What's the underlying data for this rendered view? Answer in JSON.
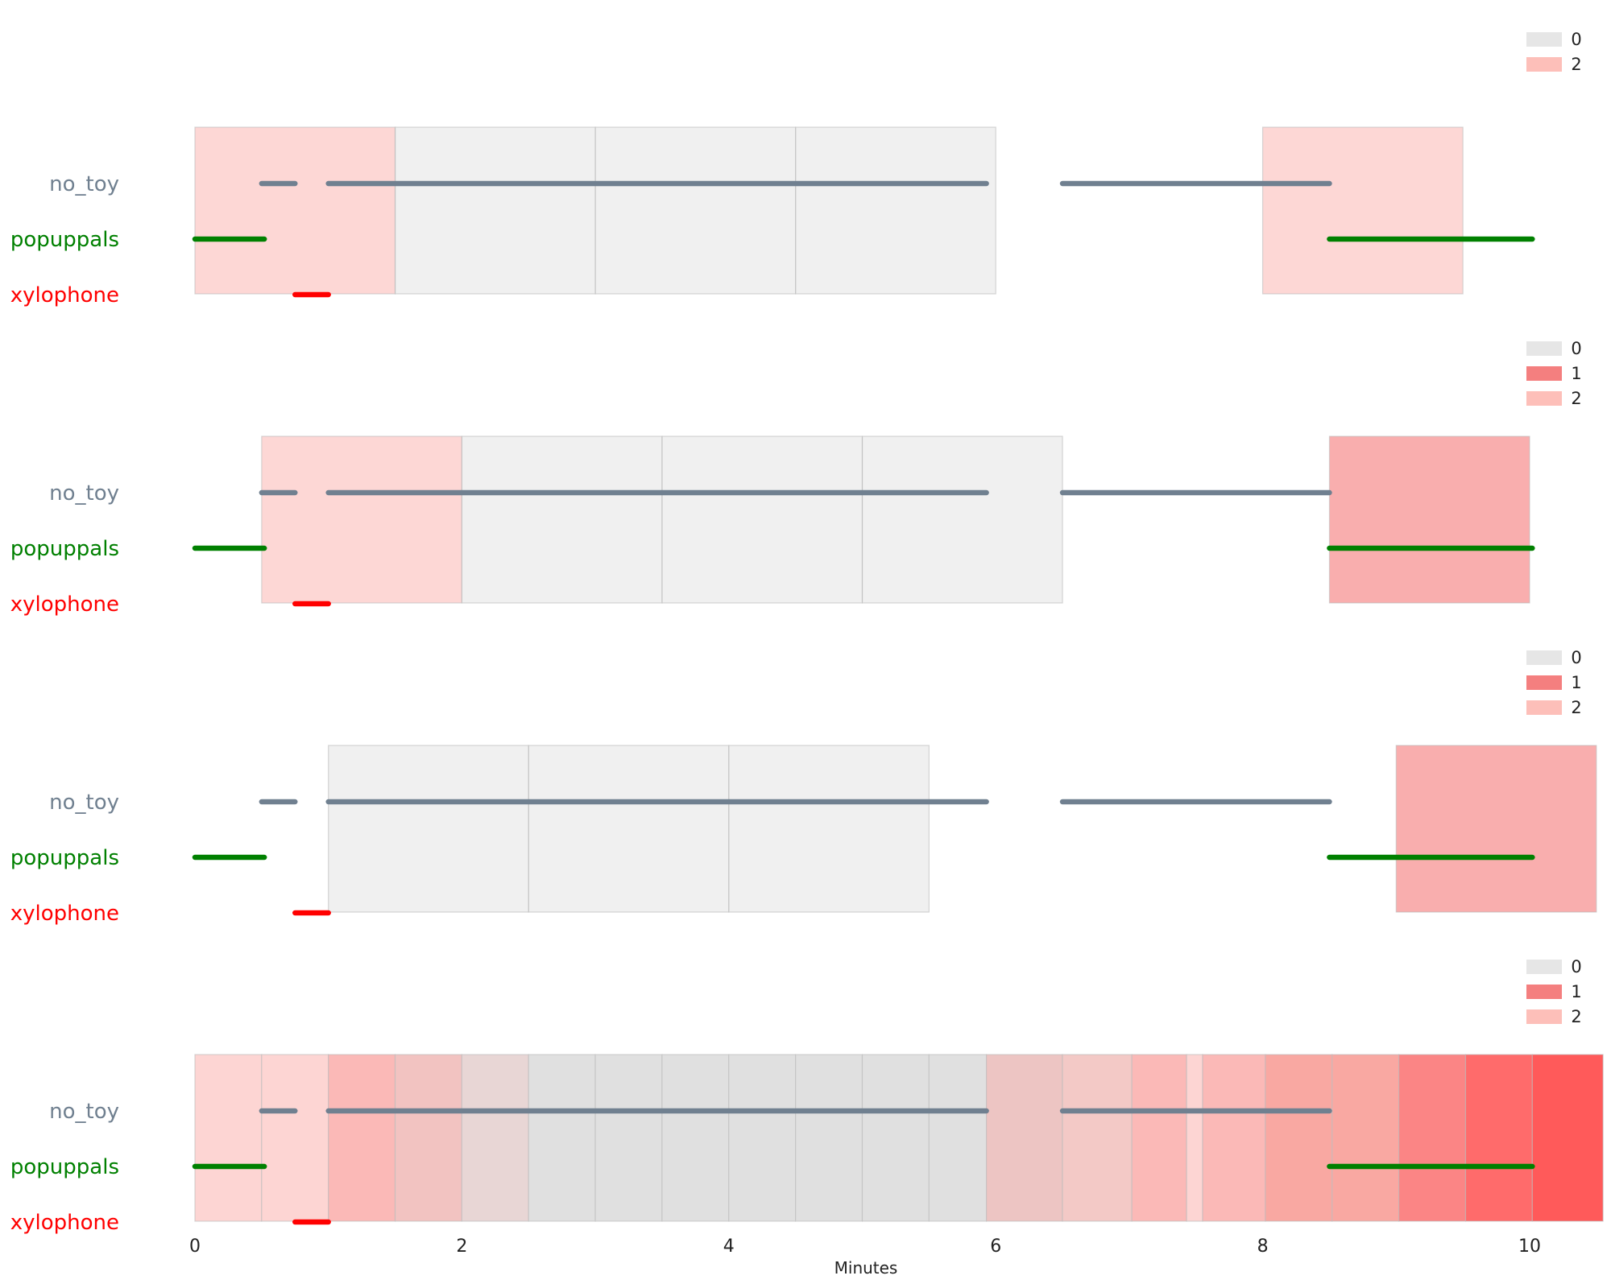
{
  "colors": {
    "no_toy": "#708090",
    "popuppals": "#008000",
    "xylophone": "#ff0000",
    "legend_0": "#e6e6e6",
    "legend_1": "#f47f7f",
    "legend_2": "#fdbfb9"
  },
  "chart_data": [
    {
      "type": "timeline",
      "rows": [
        "no_toy",
        "popuppals",
        "xylophone"
      ],
      "legend": [
        {
          "label": "0"
        },
        {
          "label": "2"
        }
      ],
      "windows": [
        {
          "start": 0.0,
          "end": 1.5,
          "level": "2"
        },
        {
          "start": 1.5,
          "end": 3.0,
          "level": "0"
        },
        {
          "start": 3.0,
          "end": 4.5,
          "level": "0"
        },
        {
          "start": 4.5,
          "end": 6.0,
          "level": "0"
        },
        {
          "start": 8.0,
          "end": 9.5,
          "level": "2"
        }
      ]
    },
    {
      "type": "timeline",
      "rows": [
        "no_toy",
        "popuppals",
        "xylophone"
      ],
      "legend": [
        {
          "label": "0"
        },
        {
          "label": "1"
        },
        {
          "label": "2"
        }
      ],
      "windows": [
        {
          "start": 0.5,
          "end": 2.0,
          "level": "2"
        },
        {
          "start": 2.0,
          "end": 3.5,
          "level": "0"
        },
        {
          "start": 3.5,
          "end": 5.0,
          "level": "0"
        },
        {
          "start": 5.0,
          "end": 6.5,
          "level": "0"
        },
        {
          "start": 8.5,
          "end": 10.0,
          "level": "1"
        }
      ]
    },
    {
      "type": "timeline",
      "rows": [
        "no_toy",
        "popuppals",
        "xylophone"
      ],
      "legend": [
        {
          "label": "0"
        },
        {
          "label": "1"
        },
        {
          "label": "2"
        }
      ],
      "windows": [
        {
          "start": 1.0,
          "end": 2.5,
          "level": "0"
        },
        {
          "start": 2.5,
          "end": 4.0,
          "level": "0"
        },
        {
          "start": 4.0,
          "end": 5.5,
          "level": "0"
        },
        {
          "start": 9.0,
          "end": 10.5,
          "level": "1"
        }
      ]
    },
    {
      "type": "timeline",
      "rows": [
        "no_toy",
        "popuppals",
        "xylophone"
      ],
      "legend": [
        {
          "label": "0"
        },
        {
          "label": "1"
        },
        {
          "label": "2"
        }
      ],
      "xlabel": "Minutes",
      "xlim": [
        0,
        10.55
      ],
      "xticks": [
        0,
        2,
        4,
        6,
        8,
        10
      ],
      "heat_segments": [
        {
          "start": 0.0,
          "end": 0.5,
          "color": "#fdd5d3"
        },
        {
          "start": 0.5,
          "end": 1.0,
          "color": "#fdd5d3"
        },
        {
          "start": 1.0,
          "end": 1.5,
          "color": "#fbb9b7"
        },
        {
          "start": 1.5,
          "end": 2.0,
          "color": "#f2c3c1"
        },
        {
          "start": 2.0,
          "end": 2.5,
          "color": "#e8d6d5"
        },
        {
          "start": 2.5,
          "end": 3.0,
          "color": "#e0e0e0"
        },
        {
          "start": 3.0,
          "end": 3.5,
          "color": "#e0e0e0"
        },
        {
          "start": 3.5,
          "end": 4.0,
          "color": "#e0e0e0"
        },
        {
          "start": 4.0,
          "end": 4.5,
          "color": "#e0e0e0"
        },
        {
          "start": 4.5,
          "end": 5.0,
          "color": "#e0e0e0"
        },
        {
          "start": 5.0,
          "end": 5.5,
          "color": "#e0e0e0"
        },
        {
          "start": 5.5,
          "end": 5.93,
          "color": "#e0e0e0"
        },
        {
          "start": 5.93,
          "end": 6.5,
          "color": "#edc5c3"
        },
        {
          "start": 6.5,
          "end": 7.02,
          "color": "#f3c9c6"
        },
        {
          "start": 7.02,
          "end": 7.43,
          "color": "#fbb9b7"
        },
        {
          "start": 7.43,
          "end": 7.55,
          "color": "#fdd5d3"
        },
        {
          "start": 7.55,
          "end": 8.02,
          "color": "#fbb9b7"
        },
        {
          "start": 8.02,
          "end": 8.52,
          "color": "#f9a8a2"
        },
        {
          "start": 8.52,
          "end": 9.02,
          "color": "#f9a8a2"
        },
        {
          "start": 9.02,
          "end": 9.52,
          "color": "#fb8585"
        },
        {
          "start": 9.52,
          "end": 10.02,
          "color": "#ff6b6b"
        },
        {
          "start": 10.02,
          "end": 10.55,
          "color": "#ff5a5a"
        }
      ]
    }
  ],
  "shared_events": {
    "no_toy": [
      [
        0.5,
        0.75
      ],
      [
        1.0,
        5.93
      ],
      [
        6.5,
        8.5
      ]
    ],
    "popuppals": [
      [
        0.0,
        0.52
      ],
      [
        8.5,
        10.02
      ]
    ],
    "xylophone": [
      [
        0.75,
        1.0
      ]
    ]
  }
}
